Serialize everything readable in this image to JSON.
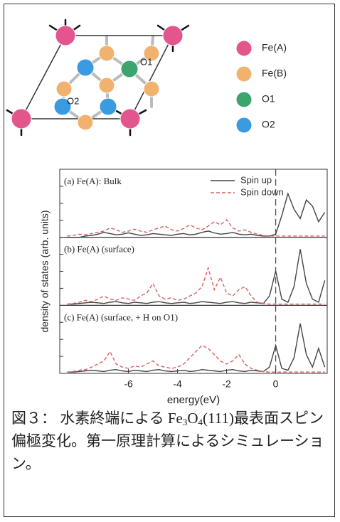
{
  "diagram": {
    "labels": [
      "O1",
      "O2"
    ],
    "legend": [
      {
        "label": "Fe(A)",
        "color": "#e2558d"
      },
      {
        "label": "Fe(B)",
        "color": "#f2b26f"
      },
      {
        "label": "O1",
        "color": "#3ca46c"
      },
      {
        "label": "O2",
        "color": "#3a9be0"
      }
    ]
  },
  "chart_data": [
    {
      "type": "line",
      "annotation": "(a) Fe(A): Bulk",
      "ylabel": "density of states (arb. units)",
      "xlim": [
        -8.8,
        2.1
      ],
      "ylim": [
        0,
        1
      ],
      "vline": 0,
      "legend": "upper right",
      "x": [
        -8.5,
        -8.25,
        -8,
        -7.75,
        -7.5,
        -7.25,
        -7,
        -6.75,
        -6.5,
        -6.25,
        -6,
        -5.75,
        -5.5,
        -5.25,
        -5,
        -4.75,
        -4.5,
        -4.25,
        -4,
        -3.75,
        -3.5,
        -3.25,
        -3,
        -2.75,
        -2.5,
        -2.25,
        -2,
        -1.75,
        -1.5,
        -1.25,
        -1,
        -0.75,
        -0.5,
        -0.25,
        0,
        0.25,
        0.5,
        0.75,
        1,
        1.25,
        1.5,
        1.75,
        2
      ],
      "series": [
        {
          "name": "Spin up",
          "color": "#444444",
          "values": [
            0,
            0,
            0,
            0.02,
            0.03,
            0.05,
            0.08,
            0.06,
            0.04,
            0.05,
            0.07,
            0.05,
            0.03,
            0.04,
            0.06,
            0.05,
            0.04,
            0.03,
            0.05,
            0.06,
            0.04,
            0.05,
            0.08,
            0.1,
            0.07,
            0.05,
            0.06,
            0.08,
            0.05,
            0.04,
            0.05,
            0.03,
            0.02,
            0.02,
            0.05,
            0.35,
            0.7,
            0.45,
            0.3,
            0.6,
            0.5,
            0.25,
            0.4
          ]
        },
        {
          "name": "Spin down",
          "color": "#d9605f",
          "dashed": true,
          "values": [
            0.02,
            0.03,
            0.05,
            0.04,
            0.06,
            0.08,
            0.1,
            0.15,
            0.12,
            0.08,
            0.1,
            0.13,
            0.1,
            0.08,
            0.12,
            0.15,
            0.18,
            0.12,
            0.1,
            0.14,
            0.2,
            0.15,
            0.12,
            0.18,
            0.25,
            0.2,
            0.28,
            0.15,
            0.1,
            0.12,
            0.08,
            0.05,
            0.03,
            0.02,
            0.02,
            0.02,
            0.02,
            0.02,
            0.02,
            0.02,
            0.02,
            0.02,
            0.02
          ]
        }
      ]
    },
    {
      "type": "line",
      "annotation": "(b) Fe(A) (surface)",
      "xlim": [
        -8.8,
        2.1
      ],
      "ylim": [
        0,
        1
      ],
      "vline": 0,
      "x": [
        -8.5,
        -8.25,
        -8,
        -7.75,
        -7.5,
        -7.25,
        -7,
        -6.75,
        -6.5,
        -6.25,
        -6,
        -5.75,
        -5.5,
        -5.25,
        -5,
        -4.75,
        -4.5,
        -4.25,
        -4,
        -3.75,
        -3.5,
        -3.25,
        -3,
        -2.75,
        -2.5,
        -2.25,
        -2,
        -1.75,
        -1.5,
        -1.25,
        -1,
        -0.75,
        -0.5,
        -0.25,
        0,
        0.25,
        0.5,
        0.75,
        1,
        1.25,
        1.5,
        1.75,
        2
      ],
      "series": [
        {
          "color": "#444444",
          "values": [
            0.02,
            0.02,
            0.03,
            0.04,
            0.05,
            0.04,
            0.03,
            0.05,
            0.06,
            0.04,
            0.03,
            0.05,
            0.04,
            0.03,
            0.05,
            0.06,
            0.04,
            0.03,
            0.04,
            0.05,
            0.03,
            0.04,
            0.06,
            0.05,
            0.04,
            0.03,
            0.05,
            0.06,
            0.04,
            0.03,
            0.05,
            0.04,
            0.03,
            0.15,
            0.55,
            0.1,
            0.05,
            0.3,
            0.9,
            0.35,
            0.1,
            0.05,
            0.4
          ]
        },
        {
          "color": "#d9605f",
          "dashed": true,
          "values": [
            0.02,
            0.03,
            0.05,
            0.08,
            0.06,
            0.1,
            0.15,
            0.1,
            0.08,
            0.12,
            0.1,
            0.08,
            0.15,
            0.2,
            0.35,
            0.15,
            0.1,
            0.12,
            0.08,
            0.1,
            0.15,
            0.2,
            0.3,
            0.6,
            0.25,
            0.45,
            0.2,
            0.15,
            0.25,
            0.3,
            0.15,
            0.05,
            0.03,
            0.02,
            0.02,
            0.02,
            0.02,
            0.02,
            0.02,
            0.02,
            0.02,
            0.02,
            0.02
          ]
        }
      ]
    },
    {
      "type": "line",
      "annotation": "(c) Fe(A) (surface, + H  on O1)",
      "xlabel": "energy(eV)",
      "xlim": [
        -8.8,
        2.1
      ],
      "ylim": [
        0,
        1
      ],
      "xticks": [
        -6,
        -4,
        -2,
        0
      ],
      "vline": 0,
      "x": [
        -8.5,
        -8.25,
        -8,
        -7.75,
        -7.5,
        -7.25,
        -7,
        -6.75,
        -6.5,
        -6.25,
        -6,
        -5.75,
        -5.5,
        -5.25,
        -5,
        -4.75,
        -4.5,
        -4.25,
        -4,
        -3.75,
        -3.5,
        -3.25,
        -3,
        -2.75,
        -2.5,
        -2.25,
        -2,
        -1.75,
        -1.5,
        -1.25,
        -1,
        -0.75,
        -0.5,
        -0.25,
        0,
        0.25,
        0.5,
        0.75,
        1,
        1.25,
        1.5,
        1.75,
        2
      ],
      "series": [
        {
          "color": "#444444",
          "values": [
            0.02,
            0.02,
            0.03,
            0.04,
            0.05,
            0.04,
            0.03,
            0.05,
            0.06,
            0.04,
            0.03,
            0.05,
            0.04,
            0.03,
            0.05,
            0.06,
            0.04,
            0.03,
            0.04,
            0.05,
            0.03,
            0.04,
            0.06,
            0.05,
            0.04,
            0.03,
            0.05,
            0.06,
            0.04,
            0.03,
            0.05,
            0.04,
            0.03,
            0.1,
            0.45,
            0.08,
            0.05,
            0.25,
            0.8,
            0.3,
            0.1,
            0.4,
            0.1
          ]
        },
        {
          "color": "#d9605f",
          "dashed": true,
          "values": [
            0.02,
            0.03,
            0.05,
            0.06,
            0.1,
            0.15,
            0.2,
            0.35,
            0.15,
            0.1,
            0.08,
            0.12,
            0.1,
            0.15,
            0.2,
            0.12,
            0.1,
            0.08,
            0.1,
            0.15,
            0.25,
            0.35,
            0.45,
            0.4,
            0.3,
            0.2,
            0.15,
            0.2,
            0.3,
            0.15,
            0.08,
            0.05,
            0.03,
            0.02,
            0.02,
            0.02,
            0.02,
            0.02,
            0.02,
            0.02,
            0.02,
            0.02,
            0.02
          ]
        }
      ]
    }
  ],
  "caption": {
    "text_before": "図３： 水素終端による Fe",
    "sub_1": "3",
    "mid": "O",
    "sub_2": "4",
    "text_after": "(111)最表面スピン偏極変化。第一原理計算によるシミュレーション。"
  }
}
